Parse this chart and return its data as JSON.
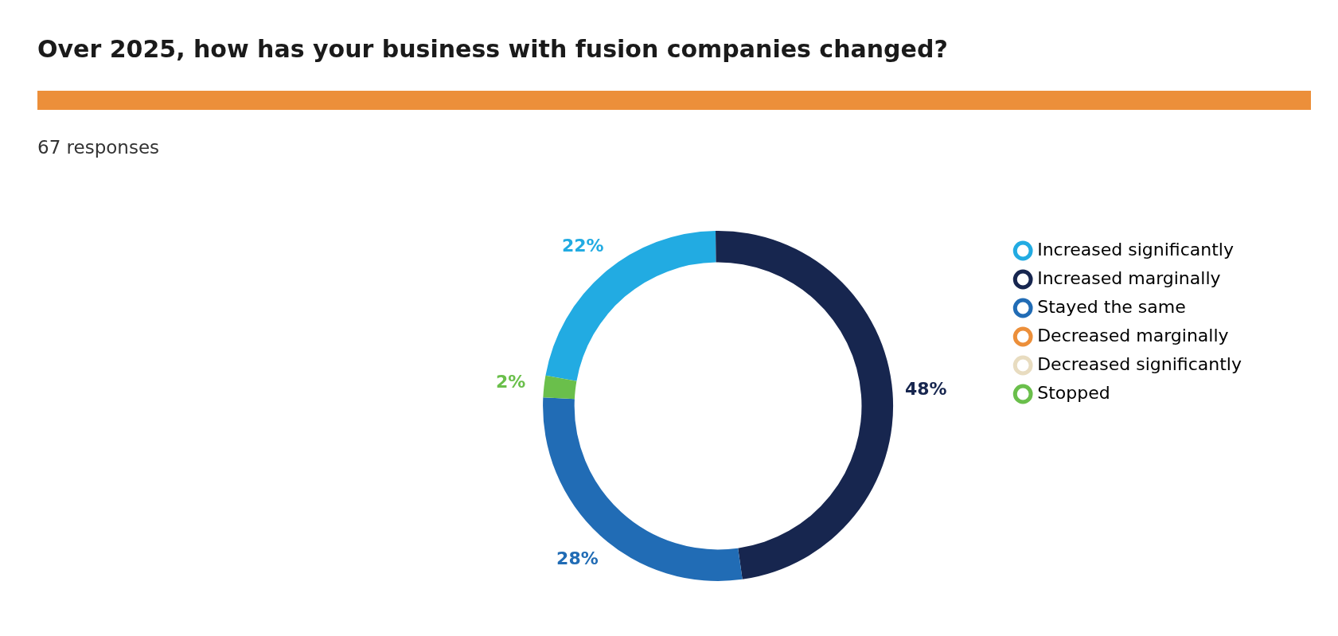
{
  "chart_data": {
    "type": "donut",
    "title": "Over 2025, how has your business with fusion companies changed?",
    "subtitle": "67 responses",
    "categories": [
      "Increased significantly",
      "Increased marginally",
      "Stayed the same",
      "Decreased marginally",
      "Decreased significantly",
      "Stopped"
    ],
    "values": [
      22,
      48,
      28,
      0,
      0,
      2
    ],
    "colors": [
      "#22abe2",
      "#17264f",
      "#216cb5",
      "#ec8f3a",
      "#e8dcc0",
      "#6abf4b"
    ],
    "value_labels": [
      "22%",
      "48%",
      "28%",
      null,
      null,
      "2%"
    ],
    "legend": "right"
  }
}
